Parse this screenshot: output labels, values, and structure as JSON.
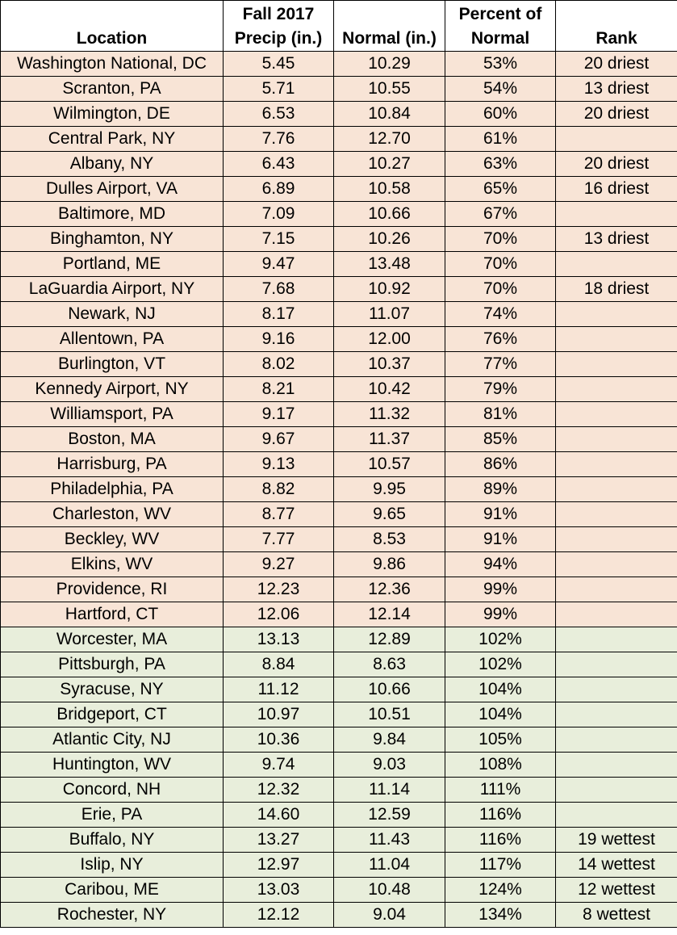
{
  "headers": {
    "location": "Location",
    "fall_line1": "Fall 2017",
    "fall_line2": "Precip (in.)",
    "normal": "Normal (in.)",
    "percent_line1": "Percent of",
    "percent_line2": "Normal",
    "rank": "Rank"
  },
  "colors": {
    "dry_row_bg": "#f8e4d6",
    "wet_row_bg": "#e8eedb"
  },
  "rows": [
    {
      "location": "Washington National, DC",
      "fall": "5.45",
      "normal": "10.29",
      "percent": "53%",
      "rank": "20 driest",
      "group": "dry"
    },
    {
      "location": "Scranton, PA",
      "fall": "5.71",
      "normal": "10.55",
      "percent": "54%",
      "rank": "13 driest",
      "group": "dry"
    },
    {
      "location": "Wilmington, DE",
      "fall": "6.53",
      "normal": "10.84",
      "percent": "60%",
      "rank": "20 driest",
      "group": "dry"
    },
    {
      "location": "Central Park, NY",
      "fall": "7.76",
      "normal": "12.70",
      "percent": "61%",
      "rank": "",
      "group": "dry"
    },
    {
      "location": "Albany, NY",
      "fall": "6.43",
      "normal": "10.27",
      "percent": "63%",
      "rank": "20 driest",
      "group": "dry"
    },
    {
      "location": "Dulles Airport, VA",
      "fall": "6.89",
      "normal": "10.58",
      "percent": "65%",
      "rank": "16 driest",
      "group": "dry"
    },
    {
      "location": "Baltimore, MD",
      "fall": "7.09",
      "normal": "10.66",
      "percent": "67%",
      "rank": "",
      "group": "dry"
    },
    {
      "location": "Binghamton, NY",
      "fall": "7.15",
      "normal": "10.26",
      "percent": "70%",
      "rank": "13 driest",
      "group": "dry"
    },
    {
      "location": "Portland, ME",
      "fall": "9.47",
      "normal": "13.48",
      "percent": "70%",
      "rank": "",
      "group": "dry"
    },
    {
      "location": "LaGuardia Airport, NY",
      "fall": "7.68",
      "normal": "10.92",
      "percent": "70%",
      "rank": "18 driest",
      "group": "dry"
    },
    {
      "location": "Newark, NJ",
      "fall": "8.17",
      "normal": "11.07",
      "percent": "74%",
      "rank": "",
      "group": "dry"
    },
    {
      "location": "Allentown, PA",
      "fall": "9.16",
      "normal": "12.00",
      "percent": "76%",
      "rank": "",
      "group": "dry"
    },
    {
      "location": "Burlington, VT",
      "fall": "8.02",
      "normal": "10.37",
      "percent": "77%",
      "rank": "",
      "group": "dry"
    },
    {
      "location": "Kennedy Airport, NY",
      "fall": "8.21",
      "normal": "10.42",
      "percent": "79%",
      "rank": "",
      "group": "dry"
    },
    {
      "location": "Williamsport, PA",
      "fall": "9.17",
      "normal": "11.32",
      "percent": "81%",
      "rank": "",
      "group": "dry"
    },
    {
      "location": "Boston, MA",
      "fall": "9.67",
      "normal": "11.37",
      "percent": "85%",
      "rank": "",
      "group": "dry"
    },
    {
      "location": "Harrisburg, PA",
      "fall": "9.13",
      "normal": "10.57",
      "percent": "86%",
      "rank": "",
      "group": "dry"
    },
    {
      "location": "Philadelphia, PA",
      "fall": "8.82",
      "normal": "9.95",
      "percent": "89%",
      "rank": "",
      "group": "dry"
    },
    {
      "location": "Charleston, WV",
      "fall": "8.77",
      "normal": "9.65",
      "percent": "91%",
      "rank": "",
      "group": "dry"
    },
    {
      "location": "Beckley, WV",
      "fall": "7.77",
      "normal": "8.53",
      "percent": "91%",
      "rank": "",
      "group": "dry"
    },
    {
      "location": "Elkins, WV",
      "fall": "9.27",
      "normal": "9.86",
      "percent": "94%",
      "rank": "",
      "group": "dry"
    },
    {
      "location": "Providence, RI",
      "fall": "12.23",
      "normal": "12.36",
      "percent": "99%",
      "rank": "",
      "group": "dry"
    },
    {
      "location": "Hartford, CT",
      "fall": "12.06",
      "normal": "12.14",
      "percent": "99%",
      "rank": "",
      "group": "dry"
    },
    {
      "location": "Worcester, MA",
      "fall": "13.13",
      "normal": "12.89",
      "percent": "102%",
      "rank": "",
      "group": "wet"
    },
    {
      "location": "Pittsburgh, PA",
      "fall": "8.84",
      "normal": "8.63",
      "percent": "102%",
      "rank": "",
      "group": "wet"
    },
    {
      "location": "Syracuse, NY",
      "fall": "11.12",
      "normal": "10.66",
      "percent": "104%",
      "rank": "",
      "group": "wet"
    },
    {
      "location": "Bridgeport, CT",
      "fall": "10.97",
      "normal": "10.51",
      "percent": "104%",
      "rank": "",
      "group": "wet"
    },
    {
      "location": "Atlantic City, NJ",
      "fall": "10.36",
      "normal": "9.84",
      "percent": "105%",
      "rank": "",
      "group": "wet"
    },
    {
      "location": "Huntington, WV",
      "fall": "9.74",
      "normal": "9.03",
      "percent": "108%",
      "rank": "",
      "group": "wet"
    },
    {
      "location": "Concord, NH",
      "fall": "12.32",
      "normal": "11.14",
      "percent": "111%",
      "rank": "",
      "group": "wet"
    },
    {
      "location": "Erie, PA",
      "fall": "14.60",
      "normal": "12.59",
      "percent": "116%",
      "rank": "",
      "group": "wet"
    },
    {
      "location": "Buffalo, NY",
      "fall": "13.27",
      "normal": "11.43",
      "percent": "116%",
      "rank": "19 wettest",
      "group": "wet"
    },
    {
      "location": "Islip, NY",
      "fall": "12.97",
      "normal": "11.04",
      "percent": "117%",
      "rank": "14 wettest",
      "group": "wet"
    },
    {
      "location": "Caribou, ME",
      "fall": "13.03",
      "normal": "10.48",
      "percent": "124%",
      "rank": "12 wettest",
      "group": "wet"
    },
    {
      "location": "Rochester, NY",
      "fall": "12.12",
      "normal": "9.04",
      "percent": "134%",
      "rank": "8 wettest",
      "group": "wet"
    }
  ]
}
